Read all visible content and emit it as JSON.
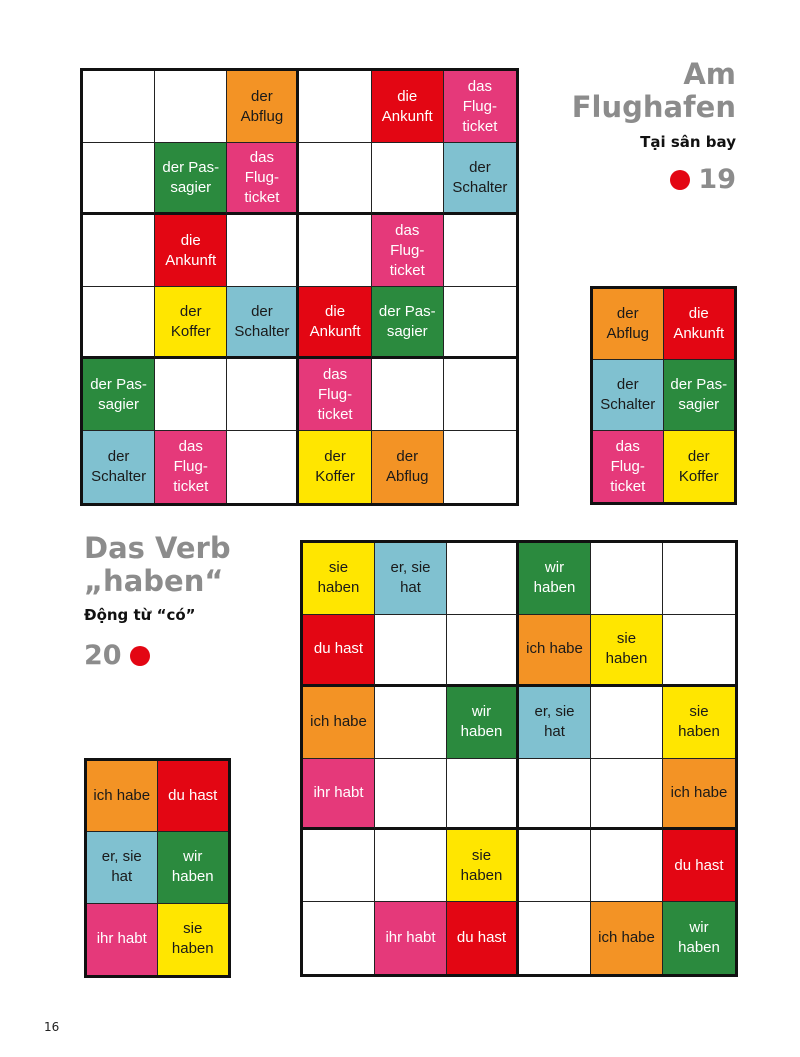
{
  "colors": {
    "orange": "#f39325",
    "red": "#e30613",
    "pink": "#e5397a",
    "blue": "#80c1d0",
    "green": "#2b8a3e",
    "yellow": "#ffe600"
  },
  "puzzle19": {
    "title_line1": "Am",
    "title_line2": "Flughafen",
    "subtitle": "Tại sân bay",
    "number": "19",
    "grid": [
      [
        null,
        null,
        {
          "t": "der\nAbflug",
          "c": "orange"
        },
        null,
        {
          "t": "die\nAnkunft",
          "c": "red"
        },
        {
          "t": "das\nFlug-\nticket",
          "c": "pink"
        }
      ],
      [
        null,
        {
          "t": "der Pas-\nsagier",
          "c": "green"
        },
        {
          "t": "das\nFlug-\nticket",
          "c": "pink"
        },
        null,
        null,
        {
          "t": "der\nSchalter",
          "c": "blue"
        }
      ],
      [
        null,
        {
          "t": "die\nAnkunft",
          "c": "red"
        },
        null,
        null,
        {
          "t": "das\nFlug-\nticket",
          "c": "pink"
        },
        null
      ],
      [
        null,
        {
          "t": "der\nKoffer",
          "c": "yellow"
        },
        {
          "t": "der\nSchalter",
          "c": "blue"
        },
        {
          "t": "die\nAnkunft",
          "c": "red"
        },
        {
          "t": "der Pas-\nsagier",
          "c": "green"
        },
        null
      ],
      [
        {
          "t": "der Pas-\nsagier",
          "c": "green"
        },
        null,
        null,
        {
          "t": "das\nFlug-\nticket",
          "c": "pink"
        },
        null,
        null
      ],
      [
        {
          "t": "der\nSchalter",
          "c": "blue"
        },
        {
          "t": "das\nFlug-\nticket",
          "c": "pink"
        },
        null,
        {
          "t": "der\nKoffer",
          "c": "yellow"
        },
        {
          "t": "der\nAbflug",
          "c": "orange"
        },
        null
      ]
    ],
    "legend": [
      [
        {
          "t": "der\nAbflug",
          "c": "orange"
        },
        {
          "t": "die\nAnkunft",
          "c": "red"
        }
      ],
      [
        {
          "t": "der\nSchalter",
          "c": "blue"
        },
        {
          "t": "der Pas-\nsagier",
          "c": "green"
        }
      ],
      [
        {
          "t": "das\nFlug-\nticket",
          "c": "pink"
        },
        {
          "t": "der\nKoffer",
          "c": "yellow"
        }
      ]
    ]
  },
  "puzzle20": {
    "title_line1": "Das Verb",
    "title_line2": "„haben“",
    "subtitle": "Động từ “có”",
    "number": "20",
    "grid": [
      [
        {
          "t": "sie\nhaben",
          "c": "yellow"
        },
        {
          "t": "er, sie\nhat",
          "c": "blue"
        },
        null,
        {
          "t": "wir\nhaben",
          "c": "green"
        },
        null,
        null
      ],
      [
        {
          "t": "du hast",
          "c": "red"
        },
        null,
        null,
        {
          "t": "ich habe",
          "c": "orange"
        },
        {
          "t": "sie\nhaben",
          "c": "yellow"
        },
        null
      ],
      [
        {
          "t": "ich habe",
          "c": "orange"
        },
        null,
        {
          "t": "wir\nhaben",
          "c": "green"
        },
        {
          "t": "er, sie\nhat",
          "c": "blue"
        },
        null,
        {
          "t": "sie\nhaben",
          "c": "yellow"
        }
      ],
      [
        {
          "t": "ihr habt",
          "c": "pink"
        },
        null,
        null,
        null,
        null,
        {
          "t": "ich habe",
          "c": "orange"
        }
      ],
      [
        null,
        null,
        {
          "t": "sie\nhaben",
          "c": "yellow"
        },
        null,
        null,
        {
          "t": "du hast",
          "c": "red"
        }
      ],
      [
        null,
        {
          "t": "ihr habt",
          "c": "pink"
        },
        {
          "t": "du hast",
          "c": "red"
        },
        null,
        {
          "t": "ich habe",
          "c": "orange"
        },
        {
          "t": "wir\nhaben",
          "c": "green"
        }
      ]
    ],
    "legend": [
      [
        {
          "t": "ich habe",
          "c": "orange"
        },
        {
          "t": "du hast",
          "c": "red"
        }
      ],
      [
        {
          "t": "er, sie\nhat",
          "c": "blue"
        },
        {
          "t": "wir\nhaben",
          "c": "green"
        }
      ],
      [
        {
          "t": "ihr habt",
          "c": "pink"
        },
        {
          "t": "sie\nhaben",
          "c": "yellow"
        }
      ]
    ]
  },
  "page_number": "16"
}
